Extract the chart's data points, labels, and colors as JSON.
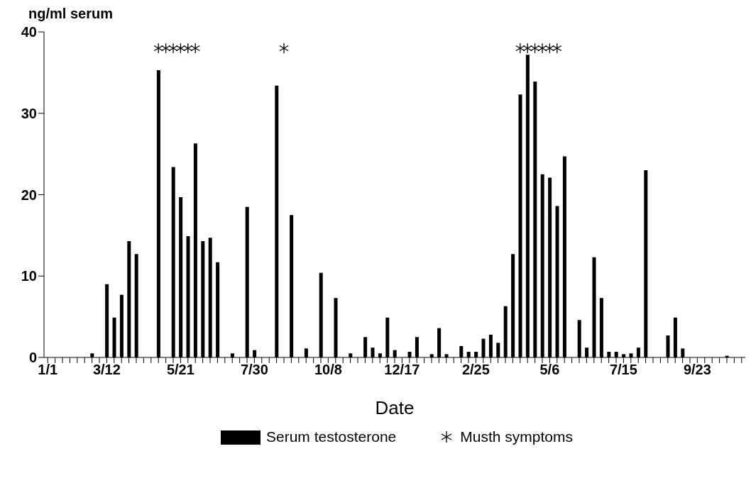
{
  "chart_data": {
    "type": "bar",
    "ylabel": "ng/ml serum",
    "xlabel": "Date",
    "categories": [
      "1/1",
      null,
      null,
      null,
      null,
      null,
      null,
      null,
      "3/12",
      null,
      null,
      null,
      null,
      null,
      null,
      null,
      null,
      null,
      "5/21",
      null,
      null,
      null,
      null,
      null,
      null,
      null,
      null,
      null,
      "7/30",
      null,
      null,
      null,
      null,
      null,
      null,
      null,
      null,
      null,
      "10/8",
      null,
      null,
      null,
      null,
      null,
      null,
      null,
      null,
      null,
      "12/17",
      null,
      null,
      null,
      null,
      null,
      null,
      null,
      null,
      null,
      "2/25",
      null,
      null,
      null,
      null,
      null,
      null,
      null,
      null,
      null,
      "5/6",
      null,
      null,
      null,
      null,
      null,
      null,
      null,
      null,
      null,
      "7/15",
      null,
      null,
      null,
      null,
      null,
      null,
      null,
      null,
      null,
      "9/23",
      null,
      null,
      null,
      null,
      null,
      null
    ],
    "series": [
      {
        "name": "Serum testosterone",
        "color": "#000000",
        "values": [
          null,
          null,
          null,
          null,
          null,
          null,
          0.5,
          null,
          9.0,
          4.9,
          7.7,
          14.3,
          12.7,
          null,
          null,
          35.3,
          null,
          23.4,
          19.7,
          14.9,
          26.3,
          14.3,
          14.7,
          11.7,
          null,
          0.5,
          null,
          18.5,
          0.9,
          null,
          null,
          33.4,
          null,
          17.5,
          null,
          1.1,
          null,
          10.4,
          null,
          7.3,
          null,
          0.5,
          null,
          2.5,
          1.2,
          0.5,
          4.9,
          0.9,
          null,
          0.7,
          2.5,
          null,
          0.4,
          3.6,
          0.4,
          null,
          1.4,
          0.7,
          0.7,
          2.3,
          2.8,
          1.8,
          6.3,
          12.7,
          32.3,
          37.2,
          33.9,
          22.5,
          22.1,
          18.6,
          24.7,
          null,
          4.6,
          1.2,
          12.3,
          7.3,
          0.7,
          0.7,
          0.4,
          0.5,
          1.2,
          23.0,
          null,
          null,
          2.7,
          4.9,
          1.1,
          null,
          null,
          null,
          null,
          null,
          0.2,
          null,
          null
        ]
      },
      {
        "name": "Musth symptoms",
        "type": "scatter",
        "color": "#000000",
        "values": [
          null,
          null,
          null,
          null,
          null,
          null,
          null,
          null,
          null,
          null,
          null,
          null,
          null,
          null,
          null,
          38,
          38,
          38,
          38,
          38,
          38,
          null,
          null,
          null,
          null,
          null,
          null,
          null,
          null,
          null,
          null,
          null,
          38,
          null,
          null,
          null,
          null,
          null,
          null,
          null,
          null,
          null,
          null,
          null,
          null,
          null,
          null,
          null,
          null,
          null,
          null,
          null,
          null,
          null,
          null,
          null,
          null,
          null,
          null,
          null,
          null,
          null,
          null,
          null,
          38,
          38,
          38,
          38,
          38,
          38,
          null,
          null,
          null,
          null,
          null,
          null,
          null,
          null,
          null,
          null,
          null,
          null,
          null,
          null,
          null,
          null,
          null,
          null,
          null,
          null,
          null,
          null,
          null,
          null,
          null
        ]
      }
    ],
    "marker": "cross",
    "ylim": [
      0,
      40
    ],
    "yticks": [
      0,
      10,
      20,
      30,
      40
    ],
    "grid": false,
    "legend": "bottom"
  }
}
